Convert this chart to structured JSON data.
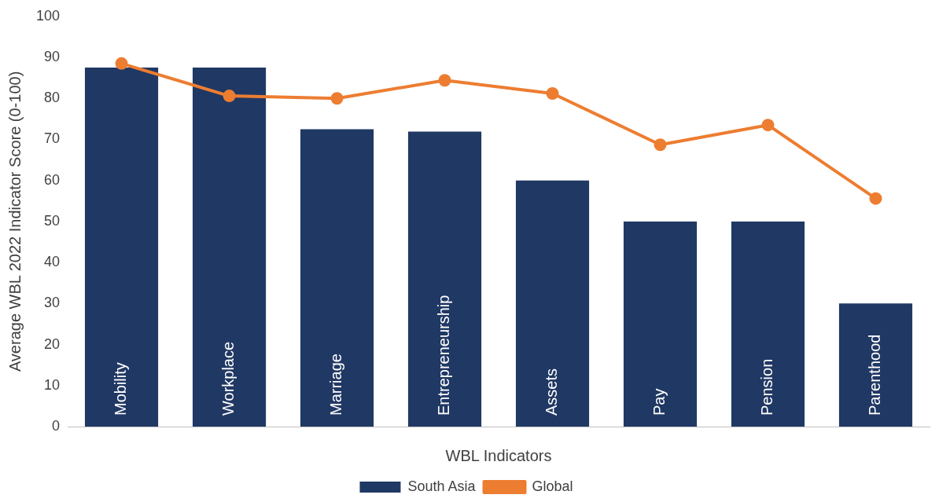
{
  "chart_data": {
    "type": "bar",
    "xlabel": "WBL Indicators",
    "ylabel": "Average WBL 2022 Indicator Score (0-100)",
    "categories": [
      "Mobility",
      "Workplace",
      "Marriage",
      "Entrepreneurship",
      "Assets",
      "Pay",
      "Pension",
      "Parenthood"
    ],
    "series": [
      {
        "name": "South Asia",
        "color": "#203864",
        "values": [
          87.5,
          87.5,
          72.5,
          71.9,
          60,
          50,
          50,
          30
        ]
      },
      {
        "name": "Global",
        "type": "line",
        "color": "#ed7d31",
        "values": [
          88.5,
          80.6,
          80,
          84.4,
          81.2,
          68.7,
          73.5,
          55.6
        ]
      }
    ],
    "ylim": [
      0,
      100
    ],
    "yticks": [
      0,
      10,
      20,
      30,
      40,
      50,
      60,
      70,
      80,
      90,
      100
    ],
    "grid": false,
    "legend": "bottom",
    "marker": "circle",
    "line_style": "solid"
  }
}
